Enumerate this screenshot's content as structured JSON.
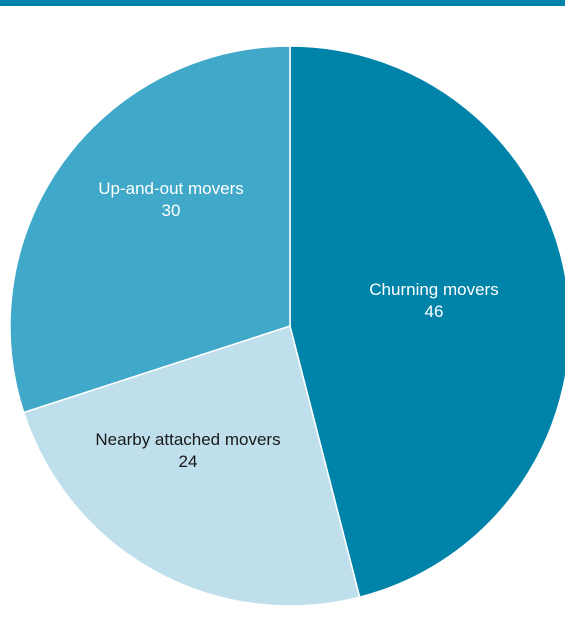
{
  "chart_data": {
    "type": "pie",
    "title": "",
    "start_angle_deg": 0,
    "direction": "clockwise",
    "legend": "none",
    "slices": [
      {
        "label": "Churning movers",
        "value": 46,
        "value_label": "46",
        "color": "#0083a9",
        "text_color": "#ffffff"
      },
      {
        "label": "Nearby attached movers",
        "value": 24,
        "value_label": "24",
        "color": "#bfdfec",
        "text_color": "#1a1a1a"
      },
      {
        "label": "Up-and-out movers",
        "value": 30,
        "value_label": "30",
        "color": "#40a8c8",
        "text_color": "#ffffff"
      }
    ]
  },
  "colors": {
    "accent_rule": "#0083a9",
    "background": "#ffffff"
  }
}
